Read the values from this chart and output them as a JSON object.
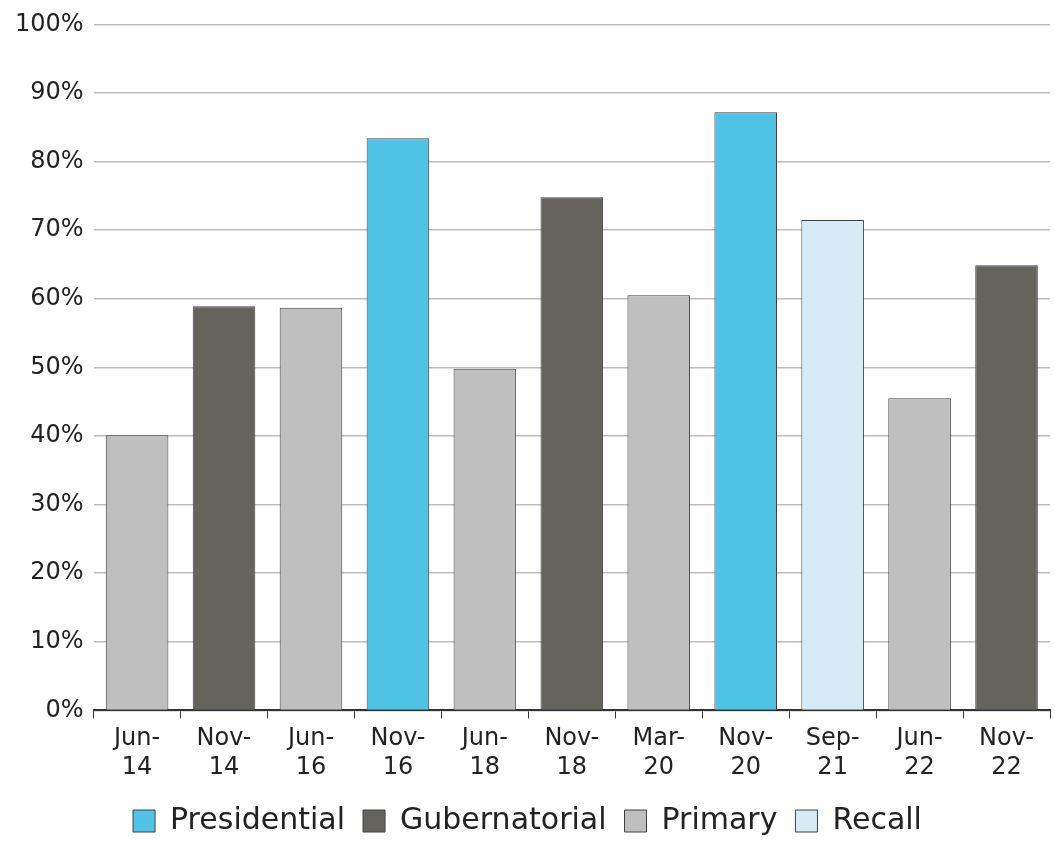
{
  "chart_data": {
    "type": "bar",
    "categories": [
      "Jun-14",
      "Nov-14",
      "Jun-16",
      "Nov-16",
      "Jun-18",
      "Nov-18",
      "Mar-20",
      "Nov-20",
      "Sep-21",
      "Jun-22",
      "Nov-22"
    ],
    "series": [
      {
        "name": "Presidential",
        "color": "#4fc3e6",
        "values": [
          null,
          null,
          null,
          83.4,
          null,
          null,
          null,
          87.2,
          null,
          null,
          null
        ]
      },
      {
        "name": "Gubernatorial",
        "color": "#64645c",
        "values": [
          null,
          58.9,
          null,
          null,
          null,
          74.8,
          null,
          null,
          null,
          null,
          64.9
        ]
      },
      {
        "name": "Primary",
        "color": "#bfbfbf",
        "values": [
          40.1,
          null,
          58.7,
          null,
          49.8,
          null,
          60.5,
          null,
          null,
          45.5,
          null
        ]
      },
      {
        "name": "Recall",
        "color": "#d5ecf6",
        "values": [
          null,
          null,
          null,
          null,
          null,
          null,
          null,
          null,
          71.5,
          null,
          null
        ]
      }
    ],
    "ylim": [
      0,
      100
    ],
    "yticks": [
      {
        "value": 0,
        "label": "0%"
      },
      {
        "value": 10,
        "label": "10%"
      },
      {
        "value": 20,
        "label": "20%"
      },
      {
        "value": 30,
        "label": "30%"
      },
      {
        "value": 40,
        "label": "40%"
      },
      {
        "value": 50,
        "label": "50%"
      },
      {
        "value": 60,
        "label": "60%"
      },
      {
        "value": 70,
        "label": "70%"
      },
      {
        "value": 80,
        "label": "80%"
      },
      {
        "value": 90,
        "label": "90%"
      },
      {
        "value": 100,
        "label": "100%"
      }
    ],
    "grid": "y",
    "legend": "bottom"
  }
}
